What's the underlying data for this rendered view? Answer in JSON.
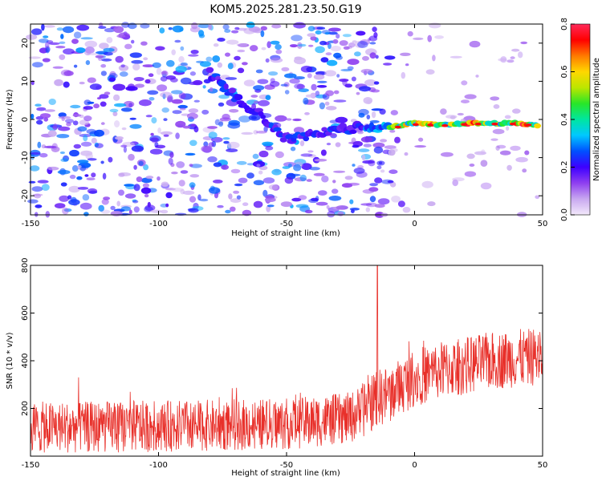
{
  "figure": {
    "title": "KOM5.2025.281.23.50.G19"
  },
  "chart_data": [
    {
      "type": "heatmap",
      "title": "KOM5.2025.281.23.50.G19",
      "xlabel": "Height of straight line (km)",
      "ylabel": "Frequency (Hz)",
      "xlim": [
        -150,
        50
      ],
      "ylim": [
        -25,
        25
      ],
      "xticks": [
        -150,
        -100,
        -50,
        0,
        50
      ],
      "yticks": [
        -20,
        -10,
        0,
        10,
        20
      ],
      "colorbar": {
        "label": "Normalized spectral amplitude",
        "range": [
          0,
          0.8
        ],
        "ticks": [
          "0.0",
          "0.2",
          "0.4",
          "0.6",
          "0.8"
        ],
        "colormap": [
          "#f3e9fb",
          "#c8a8f0",
          "#8f3ff0",
          "#3d00ff",
          "#0050ff",
          "#00c8ff",
          "#00e6a0",
          "#28e628",
          "#bce600",
          "#ffd700",
          "#ff7a00",
          "#ff0000",
          "#ff2a5a"
        ]
      },
      "signal_ridge": {
        "description_points_x": [
          -150,
          -80,
          -70,
          -60,
          -50,
          -40,
          -30,
          -20,
          -10,
          0,
          10,
          20,
          30,
          40,
          48
        ],
        "description_points_y": [
          14,
          12,
          6,
          1,
          -5,
          -4,
          -3,
          -2,
          -2,
          -1,
          -1.5,
          -1,
          -1,
          -1,
          -1.5
        ],
        "peak_amplitude": 0.8
      }
    },
    {
      "type": "line",
      "xlabel": "Height of straight line (km)",
      "ylabel": "SNR (10 * v/v)",
      "xlim": [
        -150,
        50
      ],
      "ylim": [
        0,
        800
      ],
      "xticks": [
        -150,
        -100,
        -50,
        0,
        50
      ],
      "yticks": [
        200,
        400,
        600,
        800
      ],
      "series": [
        {
          "name": "SNR",
          "color": "#e8302a",
          "trend_x": [
            -150,
            -100,
            -50,
            -25,
            -15,
            -10,
            0,
            10,
            20,
            30,
            40,
            50
          ],
          "trend_y": [
            120,
            125,
            135,
            160,
            240,
            260,
            330,
            360,
            380,
            400,
            410,
            420
          ],
          "spread": 90,
          "spike": {
            "x": -14.5,
            "y": 800
          }
        }
      ]
    }
  ]
}
